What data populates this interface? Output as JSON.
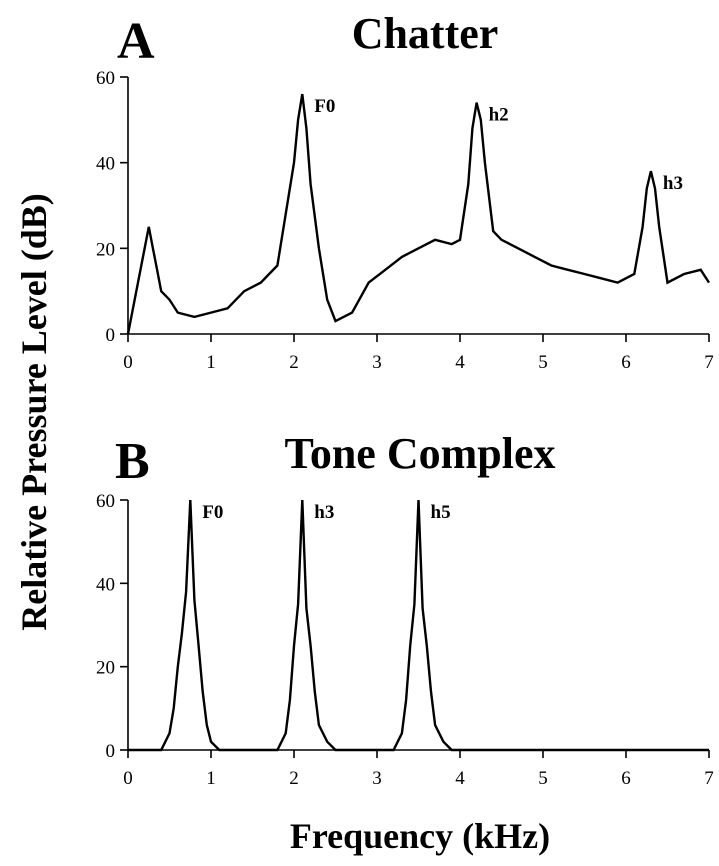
{
  "y_axis_title": "Relative Pressure Level  (dB)",
  "x_axis_title": "Frequency (kHz)",
  "chart_data": [
    {
      "type": "line",
      "panel": "A",
      "title": "Chatter",
      "xlim": [
        0,
        7
      ],
      "ylim": [
        0,
        60
      ],
      "xticks": [
        "0",
        "1",
        "2",
        "3",
        "4",
        "5",
        "6",
        "7"
      ],
      "yticks": [
        "0",
        "20",
        "40",
        "60"
      ],
      "peak_labels": [
        {
          "text": "F0",
          "x": 2.1,
          "y": 56
        },
        {
          "text": "h2",
          "x": 4.2,
          "y": 54
        },
        {
          "text": "h3",
          "x": 6.3,
          "y": 38
        }
      ],
      "series": [
        {
          "x": [
            0.0,
            0.25,
            0.3,
            0.35,
            0.4,
            0.5,
            0.6,
            0.8,
            1.0,
            1.2,
            1.4,
            1.6,
            1.8,
            1.9,
            2.0,
            2.05,
            2.1,
            2.15,
            2.2,
            2.3,
            2.4,
            2.5,
            2.7,
            2.9,
            3.1,
            3.3,
            3.5,
            3.7,
            3.9,
            4.0,
            4.1,
            4.15,
            4.2,
            4.25,
            4.3,
            4.4,
            4.5,
            4.7,
            4.9,
            5.1,
            5.3,
            5.5,
            5.7,
            5.9,
            6.1,
            6.2,
            6.25,
            6.3,
            6.35,
            6.4,
            6.5,
            6.7,
            6.9,
            7.0
          ],
          "y": [
            0,
            25,
            20,
            15,
            10,
            8,
            5,
            4,
            5,
            6,
            10,
            12,
            16,
            28,
            40,
            50,
            56,
            48,
            35,
            20,
            8,
            3,
            5,
            12,
            15,
            18,
            20,
            22,
            21,
            22,
            35,
            48,
            54,
            50,
            40,
            24,
            22,
            20,
            18,
            16,
            15,
            14,
            13,
            12,
            14,
            25,
            34,
            38,
            34,
            25,
            12,
            14,
            15,
            12
          ]
        }
      ]
    },
    {
      "type": "line",
      "panel": "B",
      "title": "Tone Complex",
      "xlim": [
        0,
        7
      ],
      "ylim": [
        0,
        60
      ],
      "xticks": [
        "0",
        "1",
        "2",
        "3",
        "4",
        "5",
        "6",
        "7"
      ],
      "yticks": [
        "0",
        "20",
        "40",
        "60"
      ],
      "peak_labels": [
        {
          "text": "F0",
          "x": 0.75,
          "y": 60
        },
        {
          "text": "h3",
          "x": 2.1,
          "y": 60
        },
        {
          "text": "h5",
          "x": 3.5,
          "y": 60
        }
      ],
      "series": [
        {
          "x": [
            0.0,
            0.4,
            0.5,
            0.55,
            0.6,
            0.65,
            0.7,
            0.75,
            0.8,
            0.85,
            0.9,
            0.95,
            1.0,
            1.1,
            1.8,
            1.9,
            1.95,
            2.0,
            2.05,
            2.1,
            2.15,
            2.2,
            2.25,
            2.3,
            2.4,
            2.5,
            3.2,
            3.3,
            3.35,
            3.4,
            3.45,
            3.5,
            3.55,
            3.6,
            3.65,
            3.7,
            3.8,
            3.9,
            7.0
          ],
          "y": [
            0,
            0,
            4,
            10,
            20,
            28,
            38,
            60,
            36,
            25,
            14,
            6,
            2,
            0,
            0,
            4,
            12,
            25,
            35,
            60,
            34,
            25,
            14,
            6,
            2,
            0,
            0,
            4,
            12,
            25,
            35,
            60,
            34,
            25,
            14,
            6,
            2,
            0,
            0
          ]
        }
      ]
    }
  ]
}
